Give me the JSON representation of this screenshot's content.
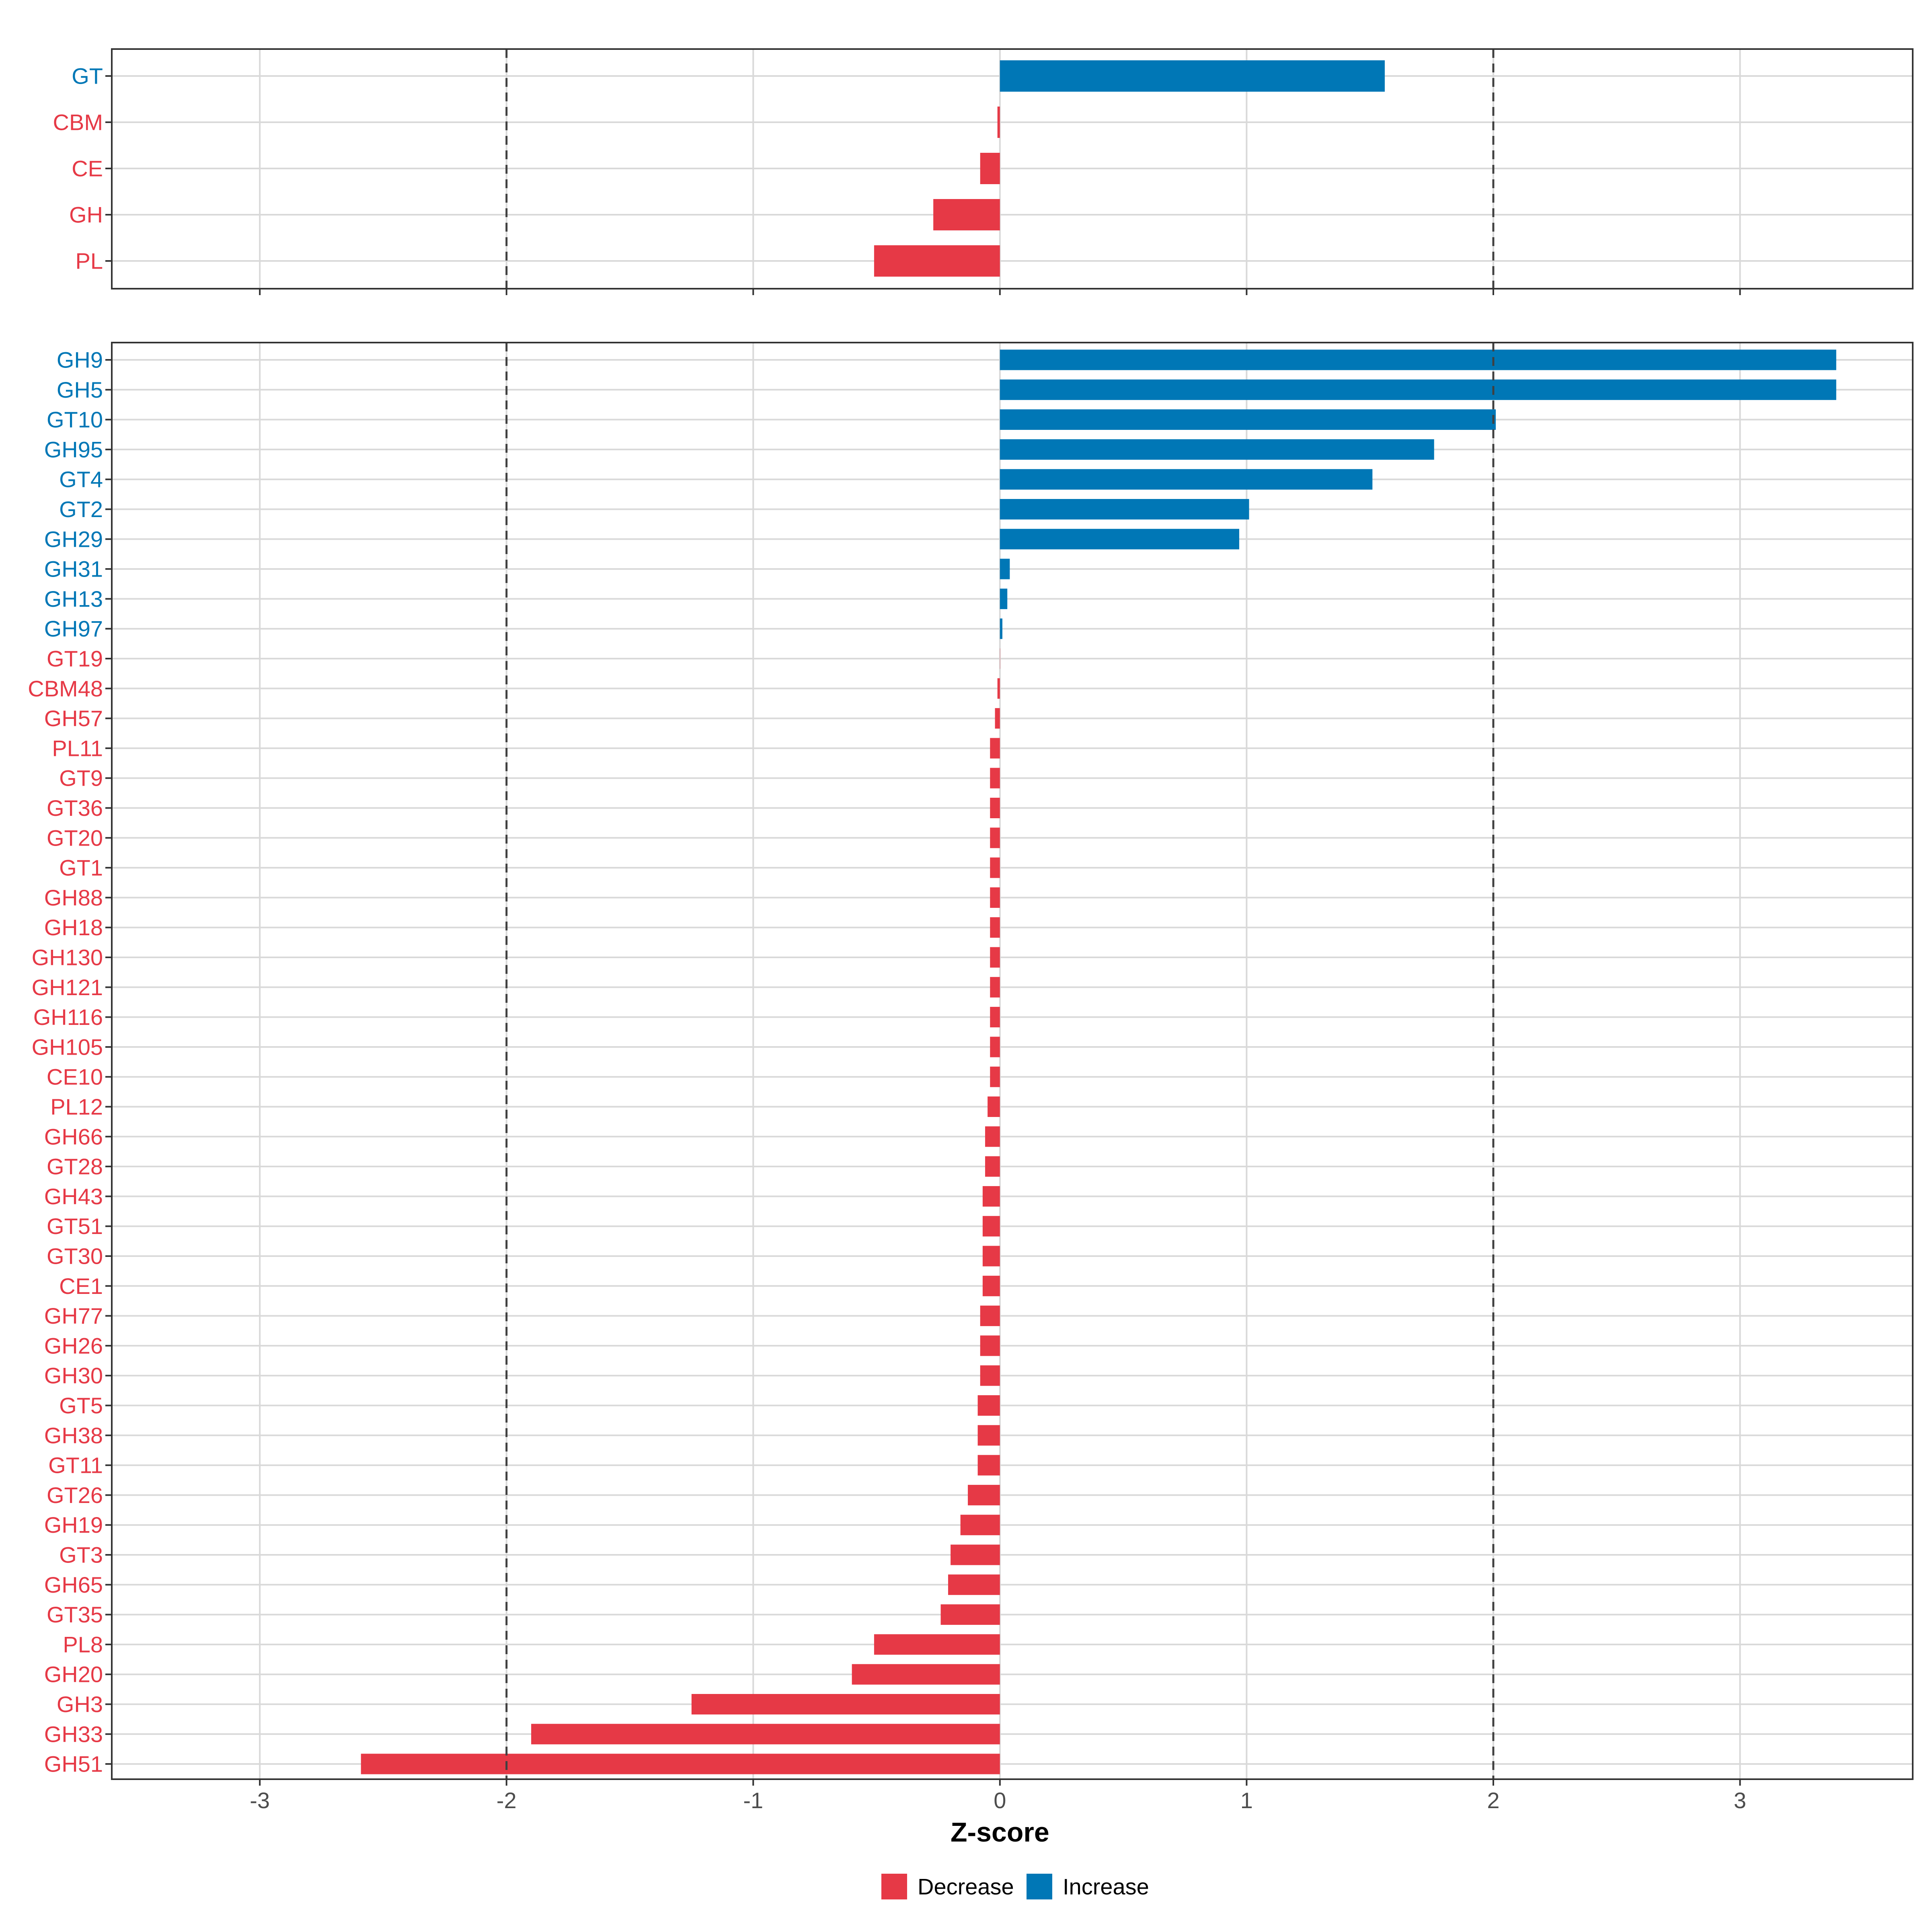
{
  "colors": {
    "decrease": "#E63946",
    "increase": "#0077B6",
    "grid": "#D9D9D9",
    "threshold": "#404040",
    "panel_border": "#333333"
  },
  "chart_data": [
    {
      "type": "bar",
      "orientation": "horizontal",
      "panel": "class-level",
      "categories": [
        "GT",
        "CBM",
        "CE",
        "GH",
        "PL"
      ],
      "values": [
        1.56,
        -0.01,
        -0.08,
        -0.27,
        -0.51
      ],
      "direction": [
        "Increase",
        "Decrease",
        "Decrease",
        "Decrease",
        "Decrease"
      ],
      "xlim": [
        -3.6,
        3.7
      ],
      "reference_lines": [
        -2,
        2
      ]
    },
    {
      "type": "bar",
      "orientation": "horizontal",
      "panel": "family-level",
      "categories": [
        "GH9",
        "GH5",
        "GT10",
        "GH95",
        "GT4",
        "GT2",
        "GH29",
        "GH31",
        "GH13",
        "GH97",
        "GT19",
        "CBM48",
        "GH57",
        "PL11",
        "GT9",
        "GT36",
        "GT20",
        "GT1",
        "GH88",
        "GH18",
        "GH130",
        "GH121",
        "GH116",
        "GH105",
        "CE10",
        "PL12",
        "GH66",
        "GT28",
        "GH43",
        "GT51",
        "GT30",
        "CE1",
        "GH77",
        "GH26",
        "GH30",
        "GT5",
        "GH38",
        "GT11",
        "GT26",
        "GH19",
        "GT3",
        "GH65",
        "GT35",
        "PL8",
        "GH20",
        "GH3",
        "GH33",
        "GH51"
      ],
      "values": [
        3.39,
        3.39,
        2.01,
        1.76,
        1.51,
        1.01,
        0.97,
        0.04,
        0.03,
        0.01,
        0.0,
        -0.01,
        -0.02,
        -0.04,
        -0.04,
        -0.04,
        -0.04,
        -0.04,
        -0.04,
        -0.04,
        -0.04,
        -0.04,
        -0.04,
        -0.04,
        -0.04,
        -0.05,
        -0.06,
        -0.06,
        -0.07,
        -0.07,
        -0.07,
        -0.07,
        -0.08,
        -0.08,
        -0.08,
        -0.09,
        -0.09,
        -0.09,
        -0.13,
        -0.16,
        -0.2,
        -0.21,
        -0.24,
        -0.51,
        -0.6,
        -1.25,
        -1.9,
        -2.59
      ],
      "direction": [
        "Increase",
        "Increase",
        "Increase",
        "Increase",
        "Increase",
        "Increase",
        "Increase",
        "Increase",
        "Increase",
        "Increase",
        "Decrease",
        "Decrease",
        "Decrease",
        "Decrease",
        "Decrease",
        "Decrease",
        "Decrease",
        "Decrease",
        "Decrease",
        "Decrease",
        "Decrease",
        "Decrease",
        "Decrease",
        "Decrease",
        "Decrease",
        "Decrease",
        "Decrease",
        "Decrease",
        "Decrease",
        "Decrease",
        "Decrease",
        "Decrease",
        "Decrease",
        "Decrease",
        "Decrease",
        "Decrease",
        "Decrease",
        "Decrease",
        "Decrease",
        "Decrease",
        "Decrease",
        "Decrease",
        "Decrease",
        "Decrease",
        "Decrease",
        "Decrease",
        "Decrease",
        "Decrease"
      ],
      "xlim": [
        -3.6,
        3.7
      ],
      "xticks": [
        -3,
        -2,
        -1,
        0,
        1,
        2,
        3
      ],
      "xlabel": "Z-score",
      "reference_lines": [
        -2,
        2
      ]
    }
  ],
  "legend": {
    "items": [
      {
        "label": "Decrease",
        "color": "#E63946"
      },
      {
        "label": "Increase",
        "color": "#0077B6"
      }
    ]
  }
}
